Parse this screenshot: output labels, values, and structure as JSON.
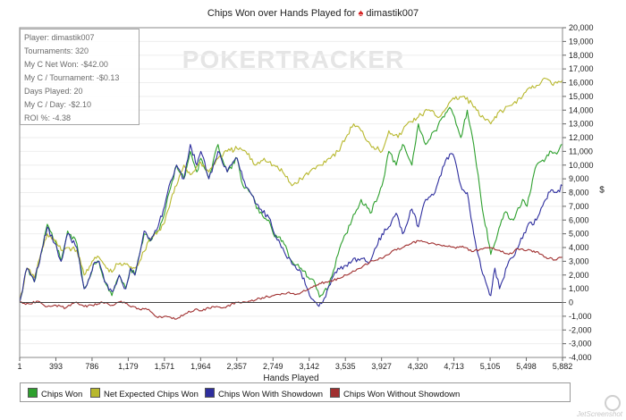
{
  "chart_data": {
    "type": "line",
    "title": "Chips Won over Hands Played for",
    "player": "dimastik007",
    "watermark": "POKERTRACKER",
    "xlabel": "Hands Played",
    "ylabel": "$",
    "xlim": [
      1,
      5882
    ],
    "ylim": [
      -4000,
      20000
    ],
    "x_ticks": [
      "1",
      "393",
      "786",
      "1,179",
      "1,571",
      "1,964",
      "2,357",
      "2,749",
      "3,142",
      "3,535",
      "3,927",
      "4,320",
      "4,713",
      "5,105",
      "5,498",
      "5,882"
    ],
    "y_ticks": [
      "20,000",
      "19,000",
      "18,000",
      "17,000",
      "16,000",
      "15,000",
      "14,000",
      "13,000",
      "12,000",
      "11,000",
      "10,000",
      "9,000",
      "8,000",
      "7,000",
      "6,000",
      "5,000",
      "4,000",
      "3,000",
      "2,000",
      "1,000",
      "0",
      "-1,000",
      "-2,000",
      "-3,000",
      "-4,000"
    ],
    "y_tick_values": [
      20000,
      19000,
      18000,
      17000,
      16000,
      15000,
      14000,
      13000,
      12000,
      11000,
      10000,
      9000,
      8000,
      7000,
      6000,
      5000,
      4000,
      3000,
      2000,
      1000,
      0,
      -1000,
      -2000,
      -3000,
      -4000
    ],
    "series": [
      {
        "name": "Chips Won",
        "color": "#2ea02e",
        "x": [
          1,
          80,
          160,
          230,
          300,
          380,
          450,
          520,
          620,
          700,
          760,
          800,
          860,
          920,
          1000,
          1080,
          1150,
          1200,
          1250,
          1300,
          1350,
          1420,
          1500,
          1571,
          1620,
          1700,
          1780,
          1850,
          1920,
          1964,
          2050,
          2150,
          2250,
          2357,
          2420,
          2500,
          2600,
          2700,
          2749,
          2850,
          2950,
          3050,
          3142,
          3200,
          3250,
          3350,
          3450,
          3535,
          3600,
          3700,
          3800,
          3927,
          4000,
          4080,
          4150,
          4250,
          4320,
          4400,
          4500,
          4600,
          4660,
          4713,
          4780,
          4850,
          4920,
          5000,
          5105,
          5180,
          5250,
          5350,
          5450,
          5498,
          5600,
          5700,
          5760,
          5820,
          5882
        ],
        "y": [
          0,
          2500,
          1500,
          3500,
          5700,
          4500,
          3000,
          5200,
          4300,
          1000,
          1800,
          2800,
          3000,
          1600,
          500,
          2000,
          1000,
          2500,
          2000,
          3500,
          5000,
          4500,
          5200,
          6500,
          8000,
          10000,
          9000,
          11000,
          9500,
          10500,
          9000,
          11500,
          9500,
          10500,
          8500,
          8000,
          6500,
          6000,
          5000,
          4500,
          3000,
          2500,
          1700,
          1400,
          400,
          1200,
          3500,
          5000,
          6000,
          7500,
          6500,
          8500,
          11000,
          10000,
          11500,
          10000,
          13000,
          11500,
          12500,
          13500,
          14200,
          13500,
          12000,
          14000,
          11500,
          7500,
          3500,
          5000,
          6500,
          6000,
          7500,
          7000,
          10000,
          10500,
          11000,
          10800,
          11500
        ]
      },
      {
        "name": "Net Expected Chips Won",
        "color": "#b8b82e",
        "x": [
          1,
          80,
          160,
          230,
          300,
          380,
          450,
          520,
          620,
          700,
          786,
          860,
          940,
          1000,
          1060,
          1179,
          1250,
          1300,
          1400,
          1500,
          1571,
          1640,
          1700,
          1780,
          1850,
          1964,
          2050,
          2150,
          2250,
          2357,
          2450,
          2550,
          2650,
          2749,
          2850,
          2950,
          3050,
          3142,
          3250,
          3350,
          3450,
          3535,
          3620,
          3700,
          3800,
          3927,
          4000,
          4100,
          4200,
          4320,
          4420,
          4550,
          4650,
          4713,
          4800,
          4900,
          5000,
          5105,
          5180,
          5250,
          5350,
          5450,
          5498,
          5600,
          5700,
          5780,
          5882
        ],
        "y": [
          0,
          2500,
          1800,
          3500,
          5000,
          4500,
          3800,
          4000,
          3800,
          2000,
          3000,
          3300,
          2500,
          2200,
          2800,
          2700,
          2500,
          3000,
          4500,
          5200,
          5800,
          7500,
          8500,
          10000,
          9300,
          10200,
          9500,
          10500,
          11000,
          11200,
          11000,
          10000,
          10500,
          10000,
          9500,
          8500,
          9000,
          9500,
          10000,
          10500,
          11000,
          12000,
          13000,
          12500,
          11500,
          11000,
          12500,
          12000,
          13000,
          13500,
          14000,
          13500,
          14500,
          14800,
          15000,
          14500,
          13500,
          13000,
          13800,
          14000,
          14500,
          15000,
          15500,
          15800,
          16300,
          15800,
          16200
        ]
      },
      {
        "name": "Chips Won With Showdown",
        "color": "#2e2e9e",
        "x": [
          1,
          80,
          160,
          230,
          300,
          380,
          450,
          520,
          620,
          700,
          760,
          800,
          860,
          920,
          1000,
          1080,
          1150,
          1200,
          1250,
          1300,
          1350,
          1420,
          1500,
          1571,
          1620,
          1700,
          1780,
          1850,
          1920,
          1964,
          2050,
          2150,
          2250,
          2357,
          2420,
          2500,
          2600,
          2700,
          2749,
          2850,
          2950,
          3050,
          3142,
          3180,
          3230,
          3300,
          3350,
          3450,
          3535,
          3600,
          3700,
          3800,
          3927,
          4000,
          4080,
          4150,
          4250,
          4320,
          4400,
          4500,
          4600,
          4660,
          4713,
          4780,
          4850,
          4920,
          5000,
          5050,
          5105,
          5150,
          5200,
          5300,
          5400,
          5498,
          5600,
          5700,
          5760,
          5820,
          5882
        ],
        "y": [
          0,
          2500,
          1500,
          3500,
          5500,
          4300,
          3000,
          5000,
          4000,
          1000,
          1800,
          2800,
          3000,
          1500,
          800,
          2000,
          1000,
          2500,
          2000,
          3500,
          5200,
          4500,
          5500,
          7000,
          8500,
          10000,
          9000,
          11500,
          10000,
          11000,
          9000,
          11000,
          9500,
          10500,
          9000,
          8000,
          6800,
          6200,
          5200,
          4000,
          2800,
          2200,
          500,
          200,
          -200,
          300,
          1200,
          2500,
          2700,
          3000,
          3200,
          3000,
          5000,
          5500,
          6500,
          5000,
          6800,
          5500,
          7500,
          8000,
          10000,
          10800,
          10500,
          8500,
          8000,
          5000,
          2500,
          1500,
          500,
          2500,
          1000,
          3000,
          4000,
          5500,
          6000,
          7500,
          8200,
          8000,
          8500
        ]
      },
      {
        "name": "Chips Won Without Showdown",
        "color": "#a03030",
        "x": [
          1,
          100,
          200,
          300,
          393,
          500,
          600,
          700,
          786,
          900,
          1000,
          1100,
          1179,
          1300,
          1400,
          1500,
          1571,
          1700,
          1800,
          1900,
          1964,
          2100,
          2200,
          2357,
          2500,
          2600,
          2749,
          2900,
          3000,
          3142,
          3250,
          3400,
          3535,
          3700,
          3800,
          3927,
          4050,
          4150,
          4320,
          4450,
          4550,
          4713,
          4800,
          4900,
          5000,
          5105,
          5200,
          5300,
          5400,
          5498,
          5600,
          5700,
          5800,
          5882
        ],
        "y": [
          0,
          -100,
          100,
          -300,
          -200,
          -400,
          0,
          -300,
          -200,
          0,
          -200,
          100,
          -200,
          -500,
          -500,
          -1100,
          -1000,
          -1200,
          -800,
          -500,
          -600,
          -300,
          -400,
          0,
          100,
          300,
          500,
          700,
          600,
          1000,
          1400,
          1600,
          2000,
          2500,
          3000,
          3200,
          3800,
          4000,
          4500,
          4300,
          4200,
          4000,
          4100,
          3700,
          3900,
          4000,
          3800,
          3500,
          3900,
          3800,
          3700,
          3300,
          3100,
          3300
        ]
      }
    ]
  },
  "stats": {
    "player": "Player: dimastik007",
    "tournaments": "Tournaments: 320",
    "net_won": "My C Net Won: -$42.00",
    "per_tournament": "My C / Tournament: -$0.13",
    "days_played": "Days Played: 20",
    "per_day": "My C / Day: -$2.10",
    "roi": "ROI %: -4.38"
  },
  "legend": {
    "chips_won": "Chips Won",
    "net_expected": "Net Expected Chips Won",
    "with_showdown": "Chips Won With Showdown",
    "without_showdown": "Chips Won Without Showdown"
  },
  "footer": {
    "capture": "JetScreenshot"
  }
}
